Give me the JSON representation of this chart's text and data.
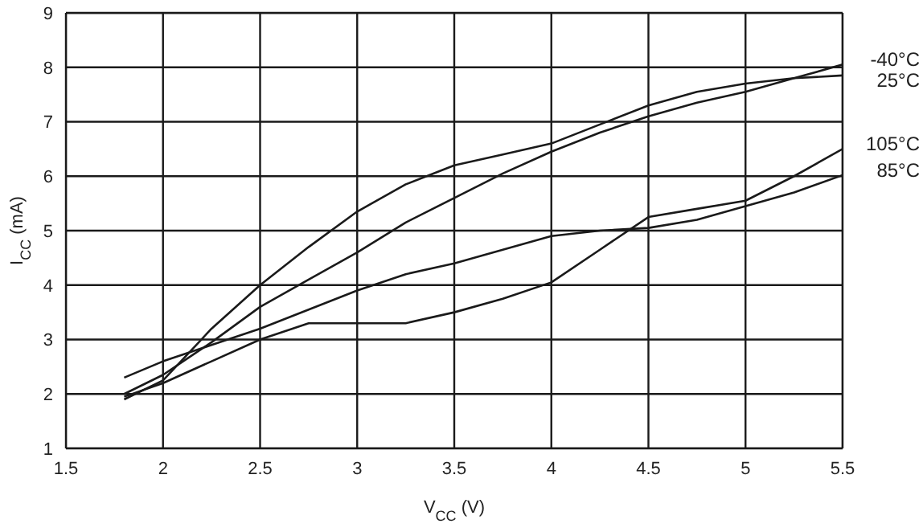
{
  "chart_data": {
    "type": "line",
    "xlabel": "V$_{CC}$ (V)",
    "ylabel": "I$_{CC}$ (mA)",
    "x": [
      1.8,
      2,
      2.25,
      2.5,
      2.75,
      3,
      3.25,
      3.5,
      3.75,
      4,
      4.25,
      4.5,
      4.75,
      5,
      5.25,
      5.5
    ],
    "series": [
      {
        "name": "-40°C",
        "color": "#1a1a1a",
        "values": [
          2.0,
          2.35,
          2.95,
          3.6,
          4.1,
          4.6,
          5.15,
          5.6,
          6.05,
          6.45,
          6.8,
          7.1,
          7.35,
          7.55,
          7.8,
          8.05
        ]
      },
      {
        "name": "25°C",
        "color": "#1a1a1a",
        "values": [
          1.9,
          2.25,
          3.2,
          4.0,
          4.7,
          5.35,
          5.85,
          6.2,
          6.4,
          6.6,
          6.95,
          7.3,
          7.55,
          7.7,
          7.8,
          7.85
        ]
      },
      {
        "name": "105°C",
        "color": "#1a1a1a",
        "values": [
          1.95,
          2.2,
          2.6,
          3.0,
          3.3,
          3.3,
          3.3,
          3.5,
          3.75,
          4.05,
          4.65,
          5.25,
          5.4,
          5.55,
          6.0,
          6.5
        ]
      },
      {
        "name": "85°C",
        "color": "#1a1a1a",
        "values": [
          2.3,
          2.6,
          2.9,
          3.2,
          3.55,
          3.9,
          4.2,
          4.4,
          4.65,
          4.9,
          5.0,
          5.05,
          5.2,
          5.45,
          5.7,
          6.02
        ]
      }
    ],
    "xlim": [
      1.5,
      5.5
    ],
    "xticks": [
      1.5,
      2,
      2.5,
      3,
      3.5,
      4,
      4.5,
      5,
      5.5
    ],
    "ylim": [
      1,
      9
    ],
    "yticks": [
      1,
      2,
      3,
      4,
      5,
      6,
      7,
      8,
      9
    ],
    "grid": true,
    "legend": false,
    "marker": "none",
    "line_style": "solid"
  }
}
